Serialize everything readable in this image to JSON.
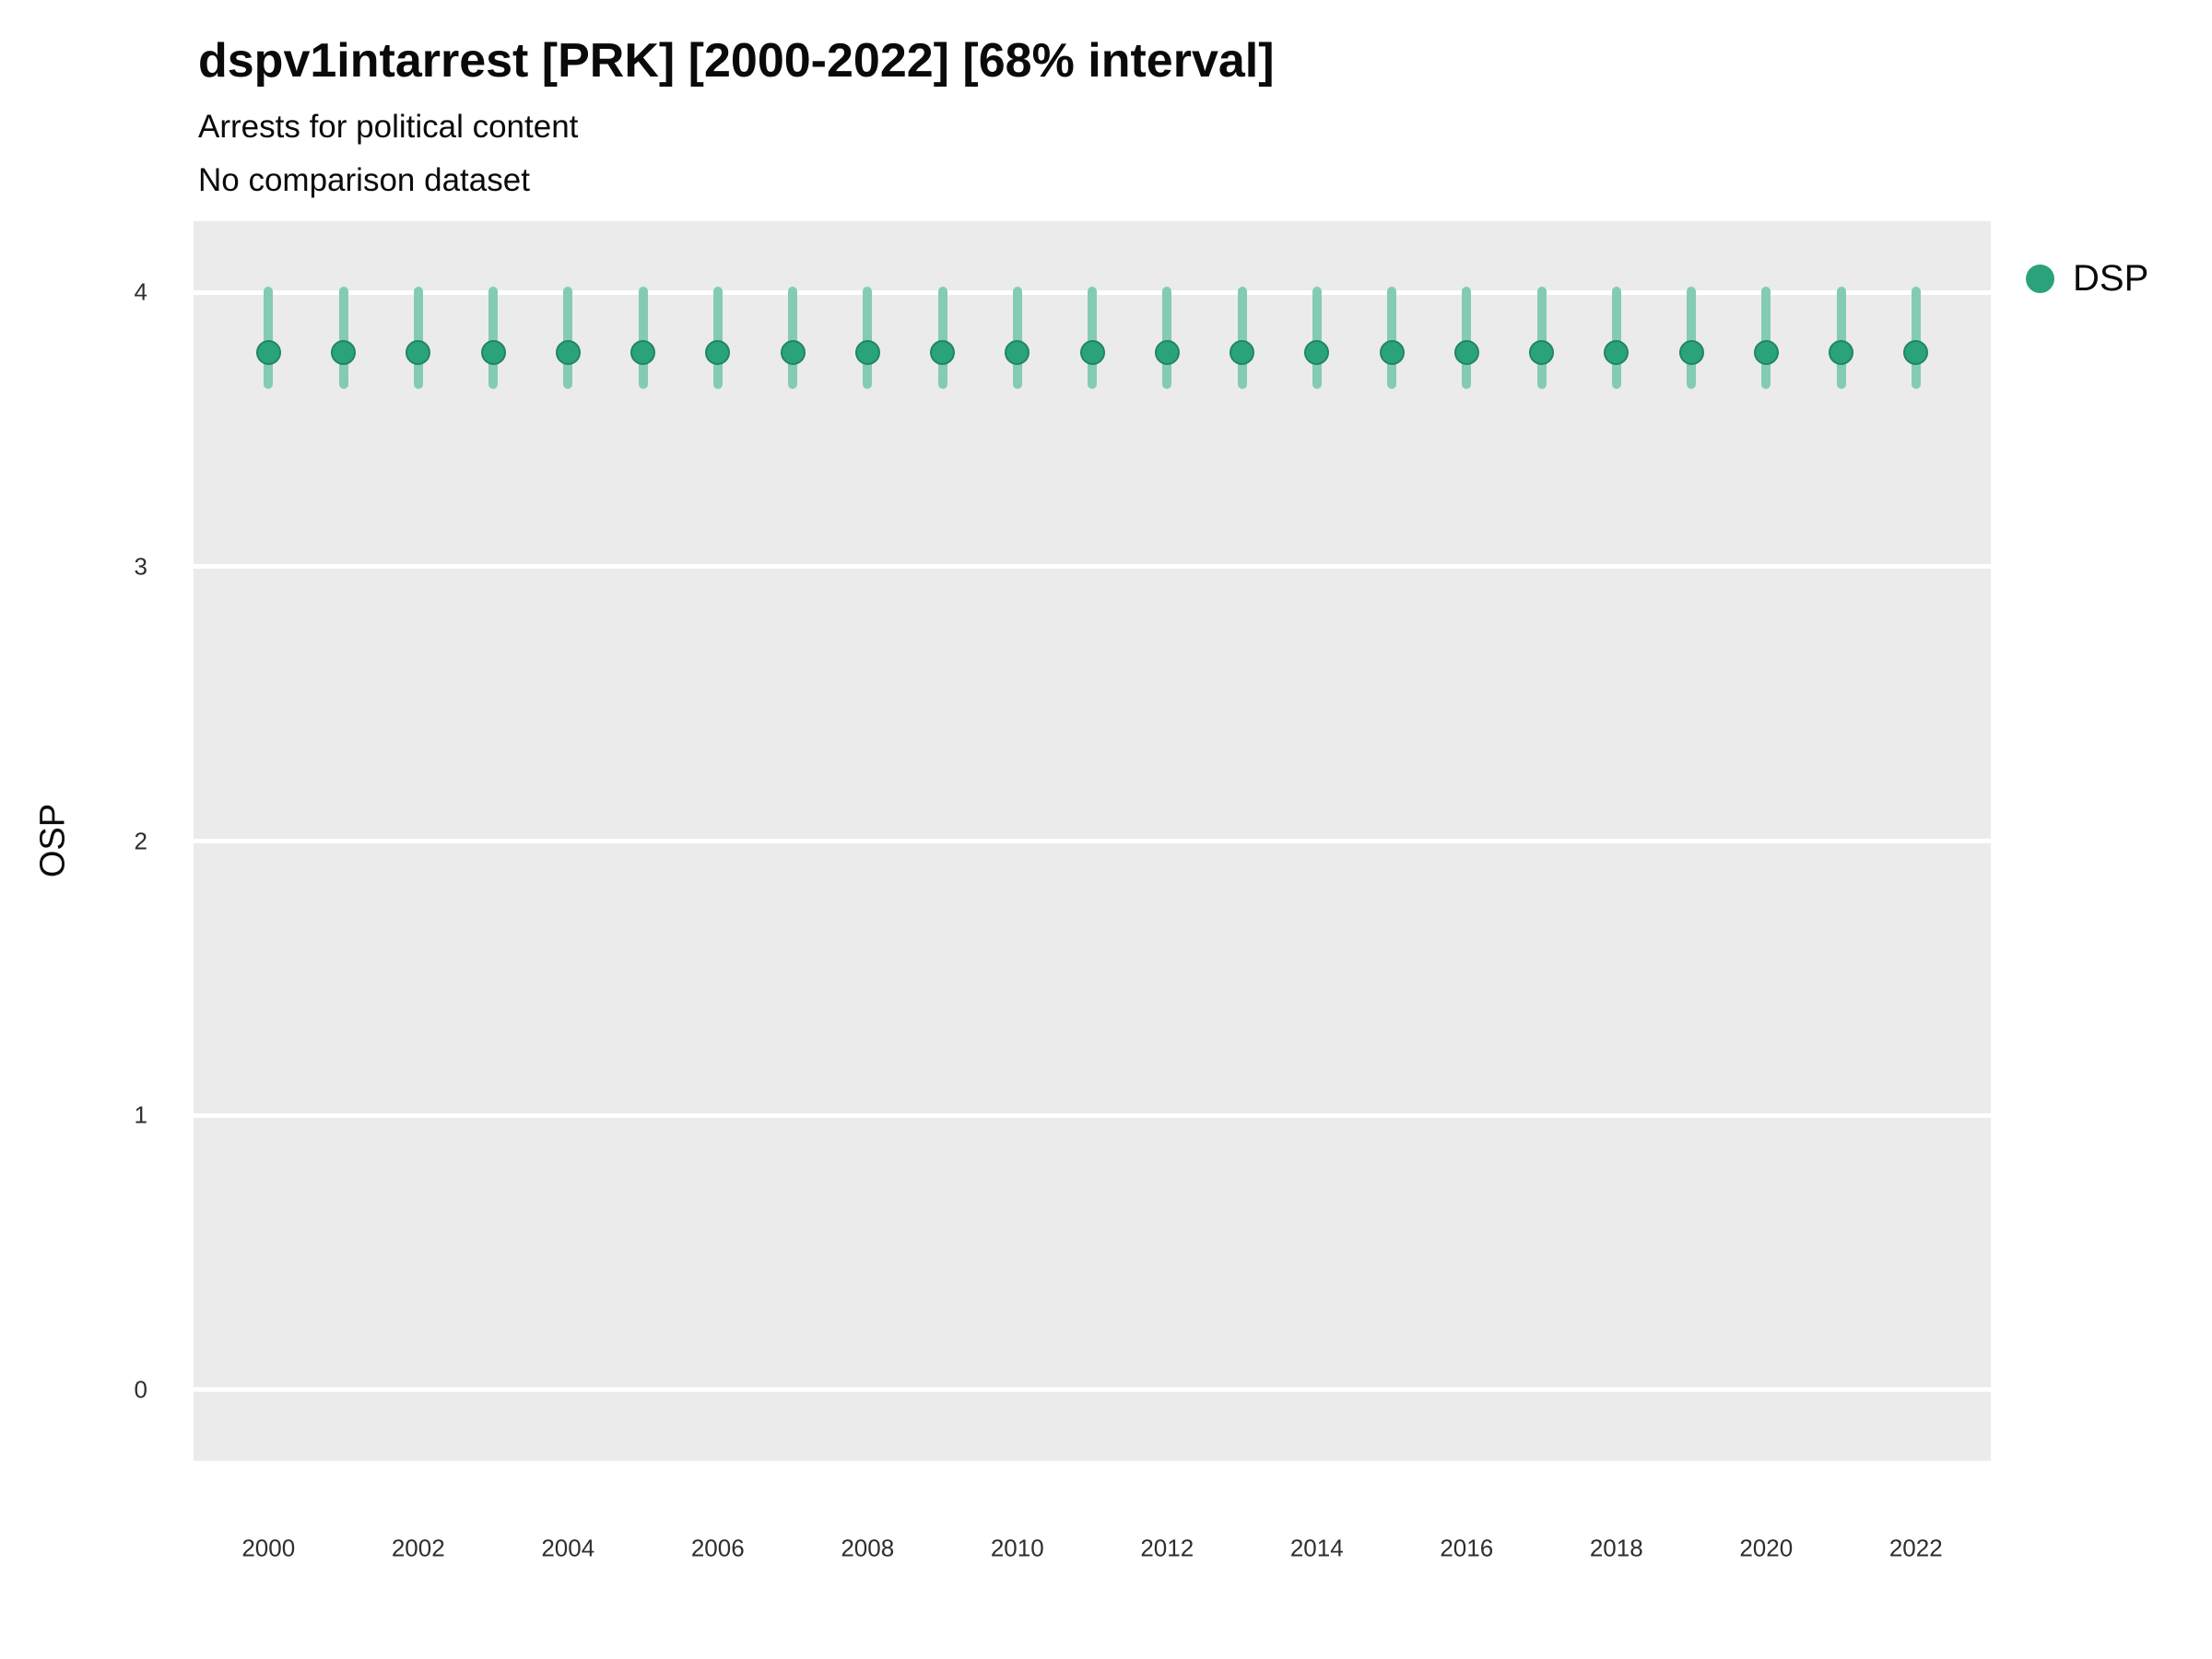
{
  "title": "dspv1intarrest [PRK] [2000-2022] [68% interval]",
  "subtitle_line1": "Arrests for political content",
  "subtitle_line2": "No comparison dataset",
  "y_axis_title": "OSP",
  "legend": {
    "label": "DSP"
  },
  "colors": {
    "point": "#2aa37c",
    "point_edge": "#218563",
    "interval": "#83ccb2",
    "panel": "#ebebeb",
    "grid": "#ffffff",
    "tick_text": "#2e2e2e"
  },
  "chart_data": {
    "type": "scatter",
    "title": "dspv1intarrest [PRK] [2000-2022] [68% interval]",
    "subtitle": "Arrests for political content / No comparison dataset",
    "xlabel": "",
    "ylabel": "OSP",
    "legend_position": "right",
    "grid": true,
    "xlim": [
      1999,
      2023
    ],
    "ylim": [
      -0.26,
      4.26
    ],
    "y_ticks": [
      0,
      1,
      2,
      3,
      4
    ],
    "x_ticks": [
      2000,
      2002,
      2004,
      2006,
      2008,
      2010,
      2012,
      2014,
      2016,
      2018,
      2020,
      2022
    ],
    "x": [
      2000,
      2001,
      2002,
      2003,
      2004,
      2005,
      2006,
      2007,
      2008,
      2009,
      2010,
      2011,
      2012,
      2013,
      2014,
      2015,
      2016,
      2017,
      2018,
      2019,
      2020,
      2021,
      2022
    ],
    "series": [
      {
        "name": "DSP",
        "values": [
          3.78,
          3.78,
          3.78,
          3.78,
          3.78,
          3.78,
          3.78,
          3.78,
          3.78,
          3.78,
          3.78,
          3.78,
          3.78,
          3.78,
          3.78,
          3.78,
          3.78,
          3.78,
          3.78,
          3.78,
          3.78,
          3.78,
          3.78
        ],
        "lower": [
          3.65,
          3.65,
          3.65,
          3.65,
          3.65,
          3.65,
          3.65,
          3.65,
          3.65,
          3.65,
          3.65,
          3.65,
          3.65,
          3.65,
          3.65,
          3.65,
          3.65,
          3.65,
          3.65,
          3.65,
          3.65,
          3.65,
          3.65
        ],
        "upper": [
          4.02,
          4.02,
          4.02,
          4.02,
          4.02,
          4.02,
          4.02,
          4.02,
          4.02,
          4.02,
          4.02,
          4.02,
          4.02,
          4.02,
          4.02,
          4.02,
          4.02,
          4.02,
          4.02,
          4.02,
          4.02,
          4.02,
          4.02
        ]
      }
    ]
  }
}
